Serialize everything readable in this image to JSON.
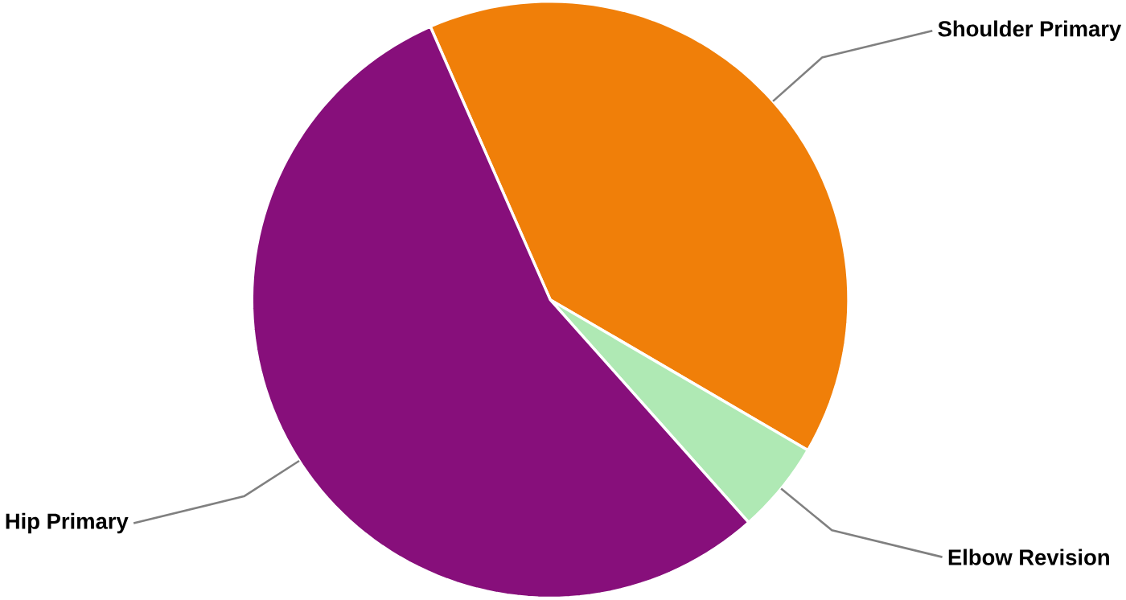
{
  "chart_data": {
    "type": "pie",
    "categories": [
      "Shoulder Primary",
      "Elbow Revision",
      "Hip Primary"
    ],
    "values": [
      40,
      5,
      55
    ],
    "colors": [
      "#f07f09",
      "#afe9b4",
      "#870f7b"
    ]
  }
}
